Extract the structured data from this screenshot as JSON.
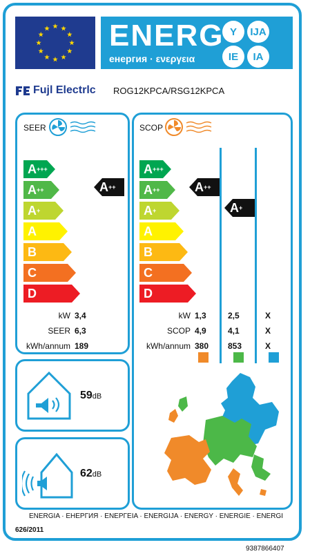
{
  "header": {
    "title": "ENERG",
    "subtitle": "енергия · ενεργεια",
    "badges": [
      "Y",
      "IJA",
      "IE",
      "IA"
    ]
  },
  "supplier": {
    "brand": "Fujl Electrlc",
    "model": "ROG12KPCA/RSG12KPCA"
  },
  "seer": {
    "title": "SEER",
    "scale": [
      "A+++",
      "A++",
      "A+",
      "A",
      "B",
      "C",
      "D"
    ],
    "class": "A++",
    "rows": [
      {
        "label": "kW",
        "value": "3,4"
      },
      {
        "label": "SEER",
        "value": "6,3"
      },
      {
        "label": "kWh/annum",
        "value": "189"
      }
    ]
  },
  "scop": {
    "title": "SCOP",
    "scale": [
      "A+++",
      "A++",
      "A+",
      "A",
      "B",
      "C",
      "D"
    ],
    "classes": [
      "A++",
      "A+"
    ],
    "rows": [
      {
        "label": "kW",
        "values": [
          "1,3",
          "2,5",
          "X"
        ]
      },
      {
        "label": "SCOP",
        "values": [
          "4,9",
          "4,1",
          "X"
        ]
      },
      {
        "label": "kWh/annum",
        "values": [
          "380",
          "853",
          "X"
        ]
      }
    ],
    "zone_colors": [
      "#f08a2a",
      "#4cb848",
      "#1f9fd6"
    ]
  },
  "noise": [
    {
      "value": "59",
      "unit": "dB"
    },
    {
      "value": "62",
      "unit": "dB"
    }
  ],
  "footer": {
    "languages": "ENERGIA · ЕНЕРГИЯ · ΕΝΕΡΓΕΙΑ · ENERGIJA · ENERGY · ENERGIE · ENERGI",
    "regulation": "626/2011",
    "serial": "9387866407"
  },
  "colors": {
    "accent": "#1f9fd6",
    "scale": [
      "#00a651",
      "#50b848",
      "#bed630",
      "#fff200",
      "#fdb913",
      "#f37021",
      "#ed1c24"
    ]
  }
}
